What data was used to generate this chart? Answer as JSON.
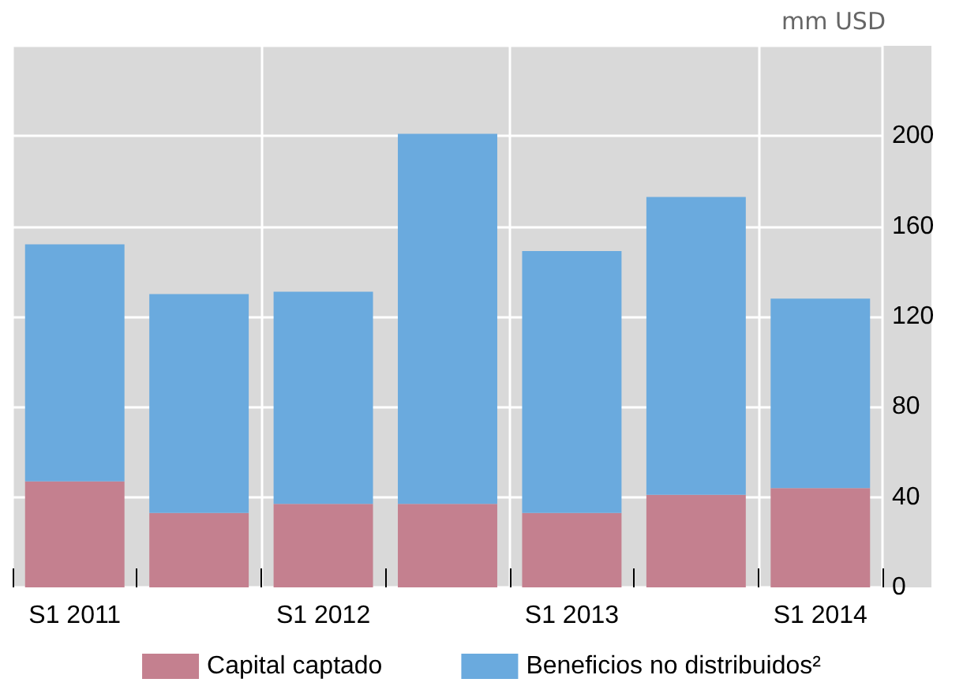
{
  "chart_data": {
    "type": "bar",
    "stacked": true,
    "ylabel": "mm USD",
    "categories": [
      "S1 2011",
      null,
      "S1 2012",
      null,
      "S1 2013",
      null,
      "S1 2014"
    ],
    "series": [
      {
        "name": "Capital captado",
        "color": "#c4808f",
        "values": [
          47,
          33,
          37,
          37,
          33,
          41,
          44
        ]
      },
      {
        "name": "Beneficios no distribuidos²",
        "color": "#6aaade",
        "values": [
          105,
          97,
          94,
          164,
          116,
          132,
          84
        ]
      }
    ],
    "ylim": [
      0,
      240
    ],
    "yticks": [
      0,
      40,
      80,
      120,
      160,
      200,
      {
        "value": 240,
        "label": null
      }
    ],
    "grid": true,
    "legend": "bottom"
  }
}
